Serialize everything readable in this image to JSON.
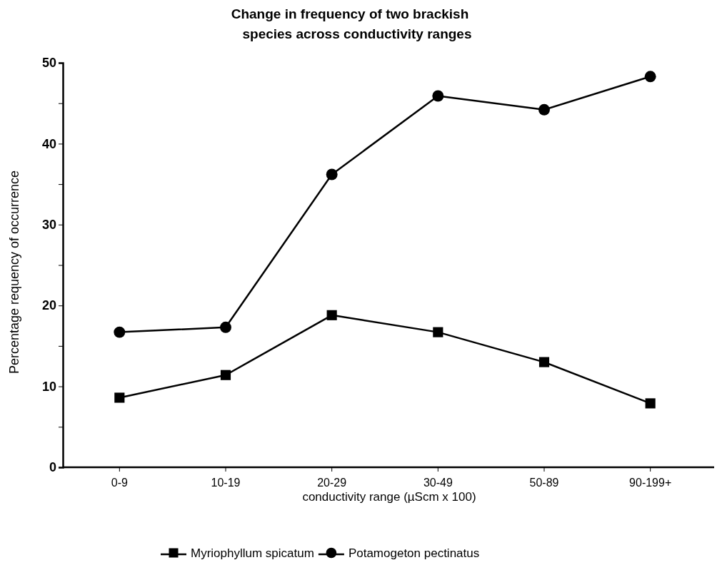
{
  "chart_data": {
    "type": "line",
    "title": "Change in frequency of two brackish\nspecies across conductivity ranges",
    "xlabel": "conductivity range (µScm x 100)",
    "ylabel": "Percentage requency of occurrence",
    "categories": [
      "0-9",
      "10-19",
      "20-29",
      "30-49",
      "50-89",
      "90-199+"
    ],
    "ylim": [
      0,
      50
    ],
    "yticks": [
      0,
      {
        "value": 5,
        "label": null
      },
      10,
      {
        "value": 15,
        "label": null
      },
      20,
      {
        "value": 25,
        "label": null
      },
      30,
      {
        "value": 35,
        "label": null
      },
      40,
      {
        "value": 45,
        "label": null
      },
      50
    ],
    "series": [
      {
        "name": "Myriophyllum spicatum",
        "color": "#000000",
        "marker": "square",
        "values": [
          8.6,
          11.4,
          18.8,
          16.7,
          13.0,
          7.9
        ]
      },
      {
        "name": "Potamogeton pectinatus",
        "color": "#000000",
        "marker": "circle",
        "values": [
          16.7,
          17.3,
          36.2,
          45.9,
          44.2,
          48.3
        ]
      }
    ],
    "legend": "bottom",
    "grid": false,
    "line_style": "solid"
  }
}
